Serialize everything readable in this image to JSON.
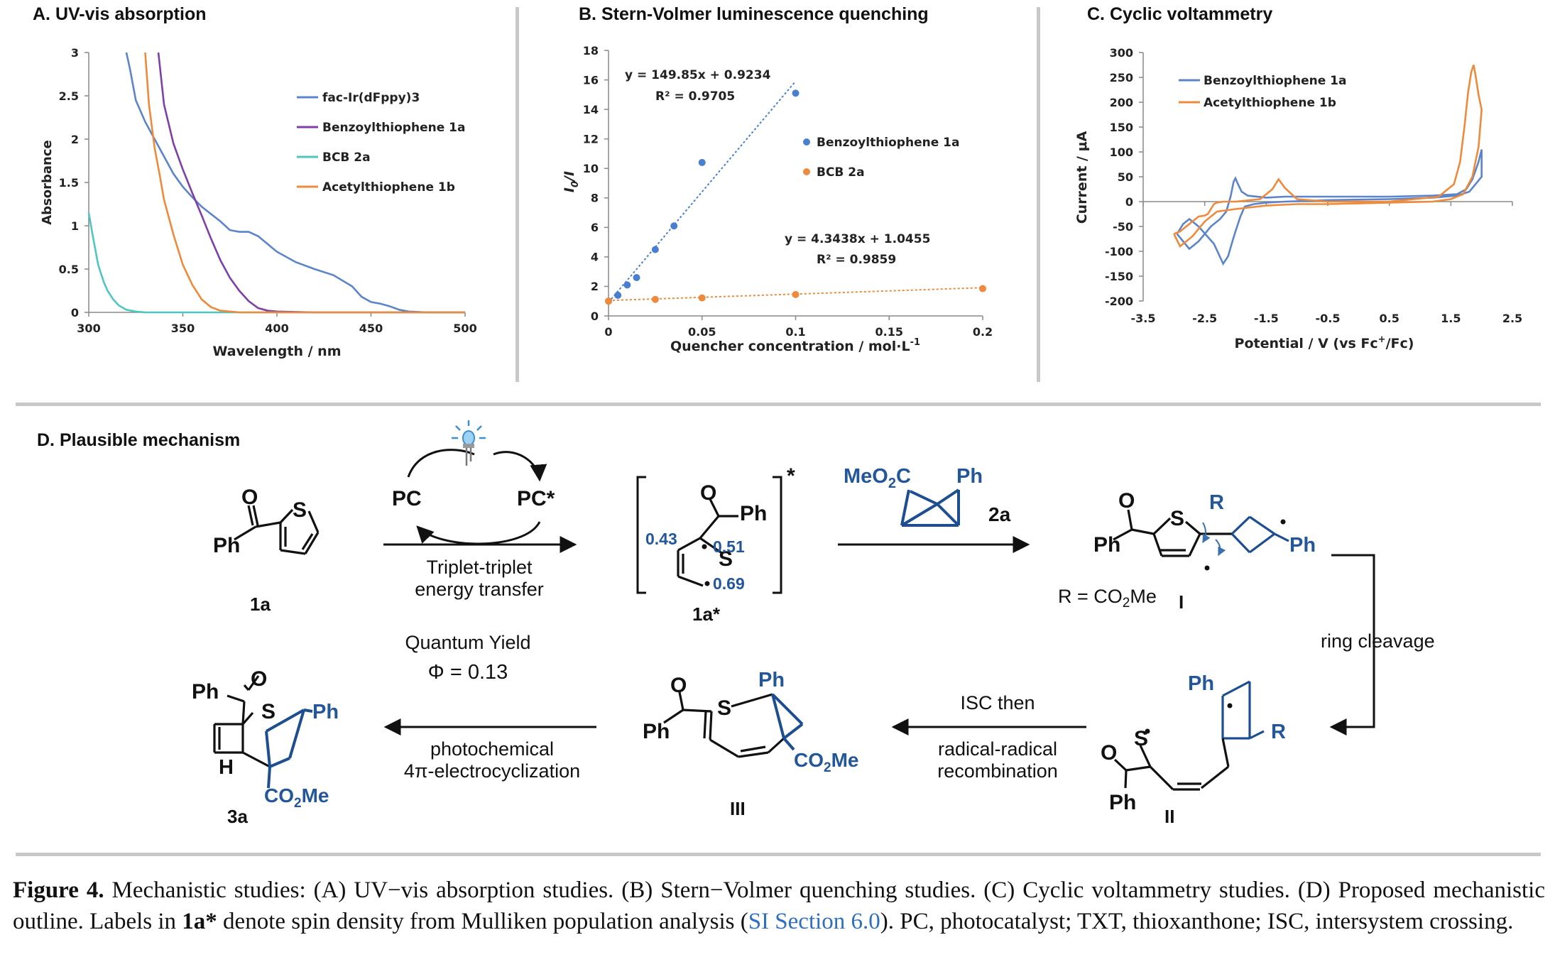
{
  "panels": {
    "a_title": "A. UV-vis absorption",
    "b_title": "B. Stern-Volmer luminescence quenching",
    "c_title": "C. Cyclic voltammetry",
    "d_title": "D. Plausible mechanism"
  },
  "chart_data": [
    {
      "type": "line",
      "title": "A. UV-vis absorption",
      "xlabel": "Wavelength / nm",
      "ylabel": "Absorbance",
      "xlim": [
        300,
        500
      ],
      "ylim": [
        0,
        3
      ],
      "xticks": [
        300,
        350,
        400,
        450,
        500
      ],
      "xtick_labels": [
        "300",
        "350",
        "400",
        "450",
        "500"
      ],
      "yticks": [
        0,
        0.5,
        1,
        1.5,
        2,
        2.5,
        3
      ],
      "ytick_labels": [
        "0",
        "0.5",
        "1",
        "1.5",
        "2",
        "2.5",
        "3"
      ],
      "legend_position": "right",
      "series": [
        {
          "name": "fac-Ir(dFppy)3",
          "color": "#5b84c9",
          "x": [
            320,
            322,
            325,
            330,
            335,
            340,
            345,
            350,
            355,
            360,
            370,
            375,
            380,
            385,
            390,
            400,
            410,
            420,
            430,
            440,
            445,
            450,
            455,
            460,
            465,
            470,
            480,
            500
          ],
          "y": [
            3,
            2.8,
            2.45,
            2.2,
            2.0,
            1.8,
            1.6,
            1.45,
            1.33,
            1.22,
            1.05,
            0.95,
            0.93,
            0.93,
            0.88,
            0.7,
            0.58,
            0.5,
            0.43,
            0.3,
            0.18,
            0.12,
            0.1,
            0.07,
            0.03,
            0.01,
            0,
            0
          ]
        },
        {
          "name": "Benzoylthiophene 1a",
          "color": "#7e3fa8",
          "x": [
            337,
            340,
            345,
            350,
            355,
            360,
            365,
            370,
            375,
            380,
            385,
            390,
            395,
            400,
            420,
            500
          ],
          "y": [
            3,
            2.4,
            1.95,
            1.65,
            1.38,
            1.12,
            0.85,
            0.6,
            0.4,
            0.25,
            0.13,
            0.05,
            0.02,
            0.01,
            0,
            0
          ]
        },
        {
          "name": "BCB 2a",
          "color": "#4fc6c0",
          "x": [
            300,
            302,
            305,
            308,
            310,
            313,
            316,
            320,
            325,
            330,
            340,
            500
          ],
          "y": [
            1.15,
            0.9,
            0.55,
            0.35,
            0.25,
            0.15,
            0.08,
            0.03,
            0.01,
            0,
            0,
            0
          ]
        },
        {
          "name": "Acetylthiophene 1b",
          "color": "#ee8a3c",
          "x": [
            330,
            332,
            335,
            338,
            340,
            345,
            350,
            355,
            360,
            365,
            370,
            380,
            500
          ],
          "y": [
            3,
            2.4,
            1.9,
            1.55,
            1.3,
            0.9,
            0.55,
            0.32,
            0.15,
            0.06,
            0.02,
            0,
            0
          ]
        }
      ]
    },
    {
      "type": "scatter",
      "title": "B. Stern-Volmer luminescence quenching",
      "xlabel": "Quencher concentration / mol·L",
      "xlabel_sup": "-1",
      "ylabel": "I",
      "ylabel_sub": "0",
      "ylabel_tail": "/I",
      "xlim": [
        0,
        0.2
      ],
      "ylim": [
        0,
        18
      ],
      "xticks": [
        0,
        0.05,
        0.1,
        0.15,
        0.2
      ],
      "xtick_labels": [
        "0",
        "0.05",
        "0.1",
        "0.15",
        "0.2"
      ],
      "yticks": [
        0,
        2,
        4,
        6,
        8,
        10,
        12,
        14,
        16,
        18
      ],
      "ytick_labels": [
        "0",
        "2",
        "4",
        "6",
        "8",
        "10",
        "12",
        "14",
        "16",
        "18"
      ],
      "legend_position": "right",
      "series": [
        {
          "name": "Benzoylthiophene 1a",
          "color": "#4a7fd0",
          "x": [
            0,
            0.005,
            0.01,
            0.015,
            0.025,
            0.035,
            0.05,
            0.1
          ],
          "y": [
            1,
            1.4,
            2.1,
            2.6,
            4.5,
            6.1,
            10.4,
            15.1
          ],
          "fit": {
            "slope": 149.85,
            "intercept": 0.9234,
            "x_end": 0.1,
            "equation": "y = 149.85x + 0.9234",
            "r2": "R² = 0.9705"
          }
        },
        {
          "name": "BCB 2a",
          "color": "#ee8a3c",
          "x": [
            0,
            0.025,
            0.05,
            0.1,
            0.2
          ],
          "y": [
            1,
            1.12,
            1.22,
            1.45,
            1.85
          ],
          "fit": {
            "slope": 4.3438,
            "intercept": 1.0455,
            "x_end": 0.2,
            "equation": "y = 4.3438x + 1.0455",
            "r2": "R² = 0.9859"
          }
        }
      ]
    },
    {
      "type": "line",
      "title": "C. Cyclic voltammetry",
      "xlabel": "Potential / V (vs Fc",
      "xlabel_sup": "+",
      "xlabel_tail": "/Fc)",
      "ylabel": "Current / μA",
      "xlim": [
        -3.5,
        2.5
      ],
      "ylim": [
        -200,
        300
      ],
      "xticks": [
        -3.5,
        -2.5,
        -1.5,
        -0.5,
        0.5,
        1.5,
        2.5
      ],
      "xtick_labels": [
        "-3.5",
        "-2.5",
        "-1.5",
        "-0.5",
        "0.5",
        "1.5",
        "2.5"
      ],
      "yticks": [
        -200,
        -150,
        -100,
        -50,
        0,
        50,
        100,
        150,
        200,
        250,
        300
      ],
      "ytick_labels": [
        "-200",
        "-150",
        "-100",
        "-50",
        "0",
        "50",
        "100",
        "150",
        "200",
        "250",
        "300"
      ],
      "legend_position": "top-left",
      "series": [
        {
          "name": "Benzoylthiophene 1a",
          "color": "#5b84c9",
          "x": [
            -2.95,
            -2.85,
            -2.75,
            -2.6,
            -2.4,
            -2.25,
            -2.15,
            -2.08,
            -2.03,
            -2.0,
            -1.97,
            -1.9,
            -1.8,
            -1.5,
            -1.2,
            -0.5,
            0.5,
            1.2,
            1.6,
            1.75,
            1.85,
            1.95,
            2.0,
            2.0,
            1.8,
            1.6,
            1.2,
            0.5,
            -0.5,
            -1.2,
            -1.5,
            -1.7,
            -1.85,
            -1.92,
            -2.0,
            -2.05,
            -2.12,
            -2.2,
            -2.35,
            -2.6,
            -2.75,
            -2.85,
            -2.95
          ],
          "y": [
            -65,
            -80,
            -95,
            -80,
            -50,
            -35,
            -20,
            10,
            40,
            47,
            38,
            20,
            12,
            8,
            10,
            10,
            10,
            12,
            15,
            25,
            45,
            80,
            105,
            50,
            20,
            12,
            8,
            5,
            3,
            0,
            -2,
            -5,
            -10,
            -30,
            -60,
            -80,
            -110,
            -125,
            -85,
            -50,
            -35,
            -45,
            -65
          ]
        },
        {
          "name": "Acetylthiophene 1b",
          "color": "#ee8a3c",
          "x": [
            -3.0,
            -2.9,
            -2.8,
            -2.7,
            -2.6,
            -2.5,
            -2.45,
            -2.4,
            -2.35,
            -2.3,
            -2.2,
            -2.0,
            -1.6,
            -1.4,
            -1.3,
            -1.2,
            -1.0,
            -0.5,
            0.5,
            1.3,
            1.55,
            1.65,
            1.72,
            1.78,
            1.83,
            1.87,
            1.9,
            1.95,
            2.0,
            1.95,
            1.85,
            1.7,
            1.5,
            1.2,
            0.5,
            -0.5,
            -1.0,
            -1.5,
            -2.0,
            -2.3,
            -2.5,
            -2.7,
            -2.9,
            -3.0
          ],
          "y": [
            -65,
            -60,
            -50,
            -40,
            -30,
            -28,
            -25,
            -15,
            -5,
            -2,
            0,
            0,
            5,
            25,
            45,
            28,
            5,
            0,
            0,
            10,
            35,
            80,
            150,
            220,
            260,
            275,
            255,
            215,
            185,
            110,
            50,
            15,
            5,
            0,
            -2,
            -5,
            -5,
            -8,
            -15,
            -20,
            -40,
            -70,
            -90,
            -65
          ]
        }
      ]
    }
  ],
  "scheme": {
    "light_icon": "led-light-icon",
    "pc": "PC",
    "pc_star": "PC*",
    "ph": "Ph",
    "oxygen": "O",
    "sulfur": "S",
    "r": "R",
    "h": "H",
    "meo2c": "MeO",
    "meo2c_sub": "2",
    "meo2c_tail": "C",
    "co2me": "CO",
    "co2me_sub": "2",
    "co2me_tail": "Me",
    "star": "*",
    "label_1a": "1a",
    "label_1a_star": "1a*",
    "label_2a": "2a",
    "label_I": "I",
    "label_II": "II",
    "label_III": "III",
    "label_3a": "3a",
    "spin_043": "0.43",
    "spin_051": "0.51",
    "spin_069": "0.69",
    "r_eq": "R = CO",
    "r_eq_sub": "2",
    "r_eq_tail": "Me",
    "arrow1_line1": "Triplet-triplet",
    "arrow1_line2": "energy transfer",
    "qy_label": "Quantum Yield",
    "qy_value": "Φ = 0.13",
    "ring_cleavage": "ring cleavage",
    "isc_then": "ISC then",
    "rr_line1": "radical-radical",
    "rr_line2": "recombination",
    "photo_line1": "photochemical",
    "photo_line2": "4π-electrocyclization"
  },
  "caption": {
    "fig": "Figure 4.",
    "t1": " Mechanistic studies: (A) UV−vis absorption studies. (B) Stern−Volmer quenching studies. (C) Cyclic voltammetry studies. (D) Proposed mechanistic outline. Labels in ",
    "bold": "1a*",
    "t2": " denote spin density from Mulliken population analysis (",
    "link": "SI Section 6.0",
    "t3": "). PC, photocatalyst; TXT, thioxanthone; ISC, intersystem crossing."
  }
}
